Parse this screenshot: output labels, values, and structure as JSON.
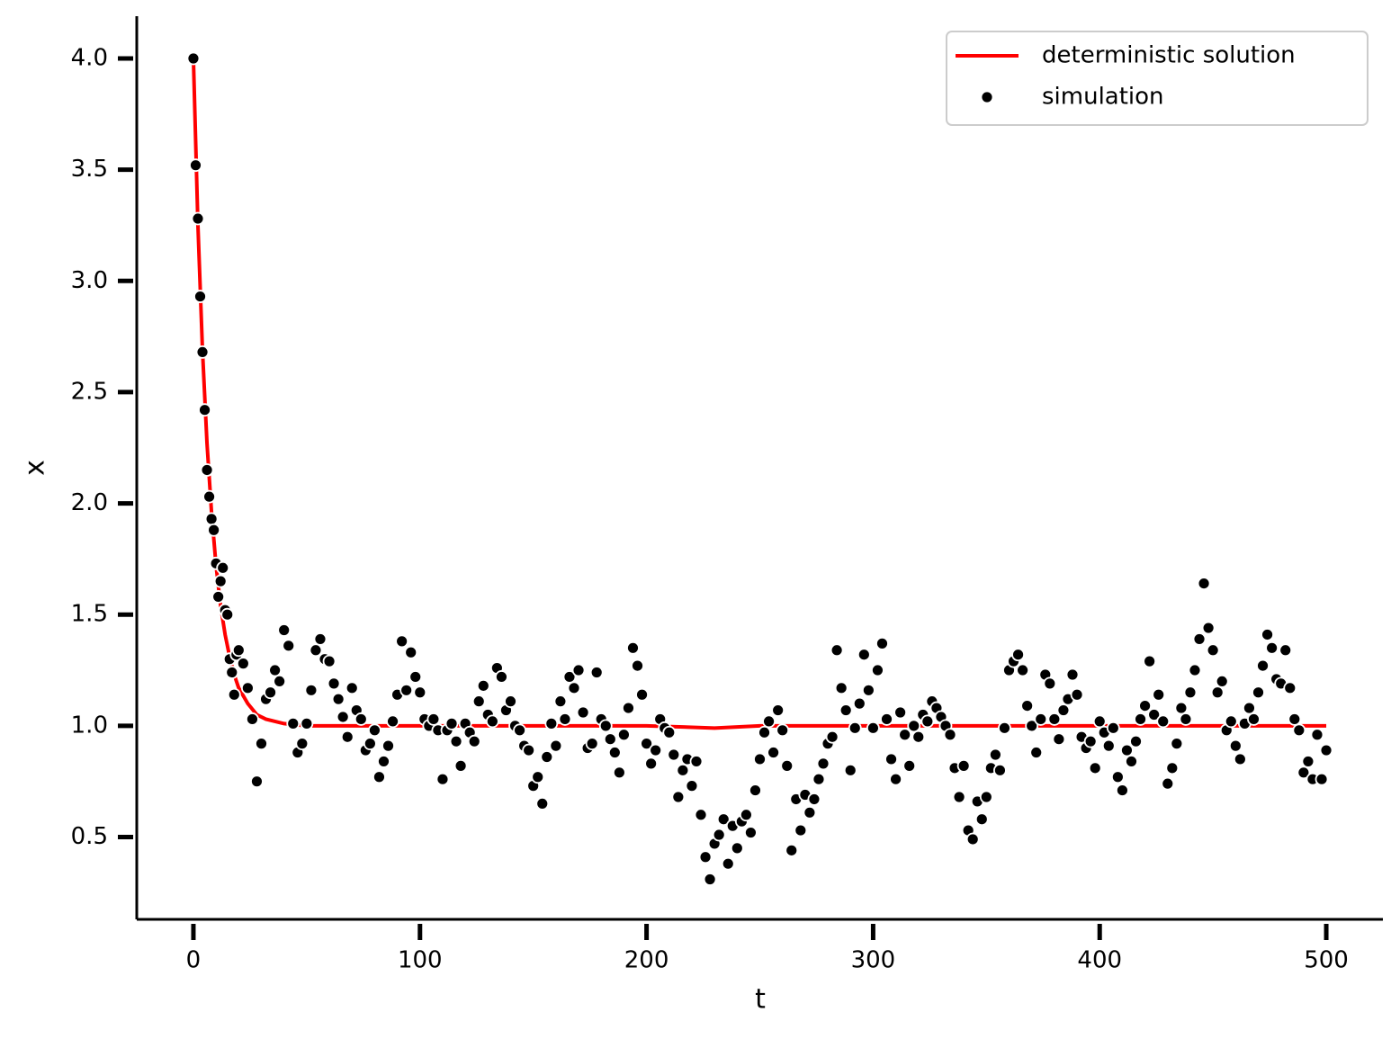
{
  "chart_data": {
    "type": "scatter",
    "xlabel": "t",
    "ylabel": "x",
    "xlim": [
      -25,
      525
    ],
    "ylim": [
      0.13,
      4.19
    ],
    "xticks": [
      0,
      100,
      200,
      300,
      400,
      500
    ],
    "yticks": [
      0.5,
      {
        "value": 1.0,
        "label": "1.0"
      },
      1.5,
      {
        "value": 2.0,
        "label": "2.0"
      },
      2.5,
      {
        "value": 3.0,
        "label": "3.0"
      },
      3.5,
      {
        "value": 4.0,
        "label": "4.0"
      }
    ],
    "legend": "upper right",
    "series": [
      {
        "name": "deterministic solution",
        "type": "line",
        "color": "#ff0000",
        "x": [
          0,
          2,
          4,
          6,
          8,
          10,
          12,
          14,
          16,
          18,
          20,
          24,
          28,
          32,
          36,
          40,
          50,
          100,
          150,
          200,
          230,
          250,
          300,
          350,
          400,
          450,
          500
        ],
        "values": [
          4.0,
          3.25,
          2.69,
          2.27,
          1.96,
          1.72,
          1.54,
          1.41,
          1.31,
          1.23,
          1.17,
          1.1,
          1.05,
          1.03,
          1.02,
          1.01,
          1.0,
          1.0,
          1.0,
          1.0,
          0.99,
          1.0,
          1.0,
          1.0,
          1.0,
          1.0,
          1.0
        ]
      },
      {
        "name": "simulation",
        "type": "scatter",
        "color": "#000000",
        "x": [
          0,
          1,
          2,
          3,
          4,
          5,
          6,
          7,
          8,
          9,
          10,
          11,
          12,
          13,
          14,
          15,
          16,
          17,
          18,
          19,
          20,
          22,
          24,
          26,
          28,
          30,
          32,
          34,
          36,
          38,
          40,
          42,
          44,
          46,
          48,
          50,
          52,
          54,
          56,
          58,
          60,
          62,
          64,
          66,
          68,
          70,
          72,
          74,
          76,
          78,
          80,
          82,
          84,
          86,
          88,
          90,
          92,
          94,
          96,
          98,
          100,
          102,
          104,
          106,
          108,
          110,
          112,
          114,
          116,
          118,
          120,
          122,
          124,
          126,
          128,
          130,
          132,
          134,
          136,
          138,
          140,
          142,
          144,
          146,
          148,
          150,
          152,
          154,
          156,
          158,
          160,
          162,
          164,
          166,
          168,
          170,
          172,
          174,
          176,
          178,
          180,
          182,
          184,
          186,
          188,
          190,
          192,
          194,
          196,
          198,
          200,
          202,
          204,
          206,
          208,
          210,
          212,
          214,
          216,
          218,
          220,
          222,
          224,
          226,
          228,
          230,
          232,
          234,
          236,
          238,
          240,
          242,
          244,
          246,
          248,
          250,
          252,
          254,
          256,
          258,
          260,
          262,
          264,
          266,
          268,
          270,
          272,
          274,
          276,
          278,
          280,
          282,
          284,
          286,
          288,
          290,
          292,
          294,
          296,
          298,
          300,
          302,
          304,
          306,
          308,
          310,
          312,
          314,
          316,
          318,
          320,
          322,
          324,
          326,
          328,
          330,
          332,
          334,
          336,
          338,
          340,
          342,
          344,
          346,
          348,
          350,
          352,
          354,
          356,
          358,
          360,
          362,
          364,
          366,
          368,
          370,
          372,
          374,
          376,
          378,
          380,
          382,
          384,
          386,
          388,
          390,
          392,
          394,
          396,
          398,
          400,
          402,
          404,
          406,
          408,
          410,
          412,
          414,
          416,
          418,
          420,
          422,
          424,
          426,
          428,
          430,
          432,
          434,
          436,
          438,
          440,
          442,
          444,
          446,
          448,
          450,
          452,
          454,
          456,
          458,
          460,
          462,
          464,
          466,
          468,
          470,
          472,
          474,
          476,
          478,
          480,
          482,
          484,
          486,
          488,
          490,
          492,
          494,
          496,
          498,
          500
        ],
        "values": [
          4.0,
          3.52,
          3.28,
          2.93,
          2.68,
          2.42,
          2.15,
          2.03,
          1.93,
          1.88,
          1.73,
          1.58,
          1.65,
          1.71,
          1.52,
          1.5,
          1.3,
          1.24,
          1.14,
          1.32,
          1.34,
          1.28,
          1.17,
          1.03,
          0.75,
          0.92,
          1.12,
          1.15,
          1.25,
          1.2,
          1.43,
          1.36,
          1.01,
          0.88,
          0.92,
          1.01,
          1.16,
          1.34,
          1.39,
          1.3,
          1.29,
          1.19,
          1.12,
          1.04,
          0.95,
          1.17,
          1.07,
          1.03,
          0.89,
          0.92,
          0.98,
          0.77,
          0.84,
          0.91,
          1.02,
          1.14,
          1.38,
          1.16,
          1.33,
          1.22,
          1.15,
          1.03,
          1.0,
          1.03,
          0.98,
          0.76,
          0.98,
          1.01,
          0.93,
          0.82,
          1.01,
          0.97,
          0.93,
          1.11,
          1.18,
          1.05,
          1.02,
          1.26,
          1.22,
          1.07,
          1.11,
          1.0,
          0.98,
          0.91,
          0.89,
          0.73,
          0.77,
          0.65,
          0.86,
          1.01,
          0.91,
          1.11,
          1.03,
          1.22,
          1.17,
          1.25,
          1.06,
          0.9,
          0.92,
          1.24,
          1.03,
          1.0,
          0.94,
          0.88,
          0.79,
          0.96,
          1.08,
          1.35,
          1.27,
          1.14,
          0.92,
          0.83,
          0.89,
          1.03,
          0.99,
          0.97,
          0.87,
          0.68,
          0.8,
          0.85,
          0.73,
          0.84,
          0.6,
          0.41,
          0.31,
          0.47,
          0.51,
          0.58,
          0.38,
          0.55,
          0.45,
          0.57,
          0.6,
          0.52,
          0.71,
          0.85,
          0.97,
          1.02,
          0.88,
          1.07,
          0.98,
          0.82,
          0.44,
          0.67,
          0.53,
          0.69,
          0.61,
          0.67,
          0.76,
          0.83,
          0.92,
          0.95,
          1.34,
          1.17,
          1.07,
          0.8,
          0.99,
          1.1,
          1.32,
          1.16,
          0.99,
          1.25,
          1.37,
          1.03,
          0.85,
          0.76,
          1.06,
          0.96,
          0.82,
          1.0,
          0.95,
          1.05,
          1.02,
          1.11,
          1.08,
          1.04,
          1.0,
          0.96,
          0.81,
          0.68,
          0.82,
          0.53,
          0.49,
          0.66,
          0.58,
          0.68,
          0.81,
          0.87,
          0.8,
          0.99,
          1.25,
          1.29,
          1.32,
          1.25,
          1.09,
          1.0,
          0.88,
          1.03,
          1.23,
          1.19,
          1.03,
          0.94,
          1.07,
          1.12,
          1.23,
          1.14,
          0.95,
          0.9,
          0.93,
          0.81,
          1.02,
          0.97,
          0.91,
          0.99,
          0.77,
          0.71,
          0.89,
          0.84,
          0.93,
          1.03,
          1.09,
          1.29,
          1.05,
          1.14,
          1.02,
          0.74,
          0.81,
          0.92,
          1.08,
          1.03,
          1.15,
          1.25,
          1.39,
          1.64,
          1.44,
          1.34,
          1.15,
          1.2,
          0.98,
          1.02,
          0.91,
          0.85,
          1.01,
          1.08,
          1.03,
          1.15,
          1.27,
          1.41,
          1.35,
          1.21,
          1.19,
          1.34,
          1.17,
          1.03,
          0.98,
          0.79,
          0.84,
          0.76,
          0.96,
          0.76,
          0.89
        ]
      }
    ]
  }
}
